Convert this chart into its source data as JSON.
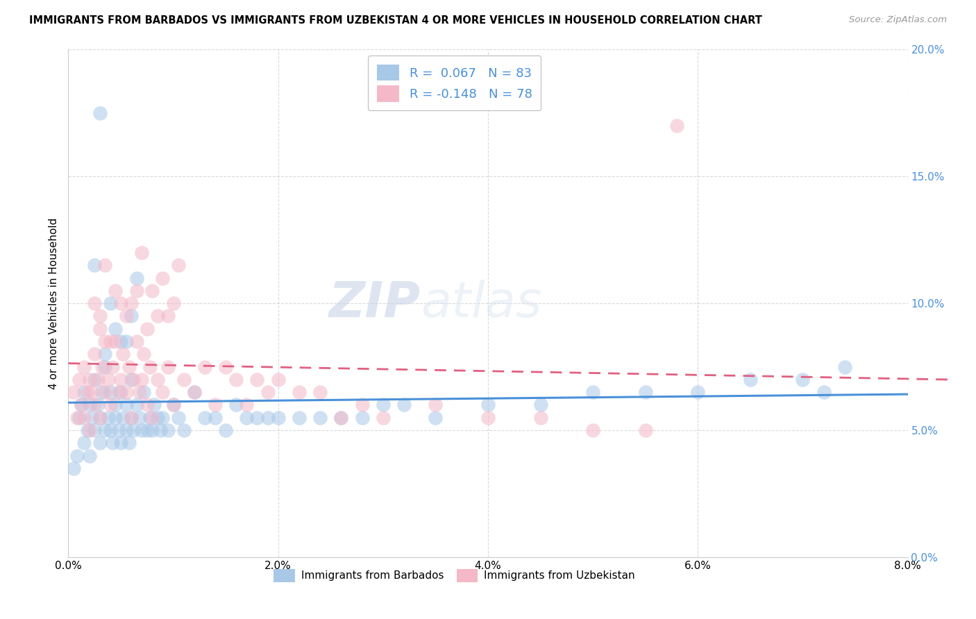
{
  "title": "IMMIGRANTS FROM BARBADOS VS IMMIGRANTS FROM UZBEKISTAN 4 OR MORE VEHICLES IN HOUSEHOLD CORRELATION CHART",
  "source": "Source: ZipAtlas.com",
  "ylabel": "4 or more Vehicles in Household",
  "xlim": [
    0.0,
    8.0
  ],
  "ylim": [
    0.0,
    20.0
  ],
  "yticks": [
    0.0,
    5.0,
    10.0,
    15.0,
    20.0
  ],
  "xticks": [
    0.0,
    2.0,
    4.0,
    6.0,
    8.0
  ],
  "barbados_color": "#a8c8e8",
  "uzbekistan_color": "#f4b8c8",
  "barbados_line_color": "#4a90d9",
  "uzbekistan_line_color": "#e06080",
  "barbados_R": 0.067,
  "barbados_N": 83,
  "uzbekistan_R": -0.148,
  "uzbekistan_N": 78,
  "legend_label_barbados": "Immigrants from Barbados",
  "legend_label_uzbekistan": "Immigrants from Uzbekistan",
  "watermark_zip": "ZIP",
  "watermark_atlas": "atlas",
  "tick_color": "#4a90d9",
  "barbados_scatter_x": [
    0.05,
    0.08,
    0.1,
    0.12,
    0.15,
    0.15,
    0.18,
    0.2,
    0.2,
    0.22,
    0.25,
    0.25,
    0.28,
    0.3,
    0.3,
    0.32,
    0.35,
    0.35,
    0.38,
    0.4,
    0.4,
    0.42,
    0.45,
    0.45,
    0.48,
    0.5,
    0.5,
    0.52,
    0.55,
    0.55,
    0.58,
    0.6,
    0.6,
    0.62,
    0.65,
    0.68,
    0.7,
    0.72,
    0.75,
    0.78,
    0.8,
    0.82,
    0.85,
    0.88,
    0.9,
    0.95,
    1.0,
    1.05,
    1.1,
    1.2,
    1.3,
    1.4,
    1.5,
    1.6,
    1.7,
    1.8,
    1.9,
    2.0,
    2.2,
    2.4,
    2.6,
    2.8,
    3.0,
    3.2,
    3.5,
    4.0,
    4.5,
    5.0,
    5.5,
    6.0,
    6.5,
    7.0,
    7.2,
    7.4,
    0.25,
    0.3,
    0.35,
    0.4,
    0.45,
    0.5,
    0.55,
    0.6,
    0.65
  ],
  "barbados_scatter_y": [
    3.5,
    4.0,
    5.5,
    6.0,
    4.5,
    6.5,
    5.0,
    4.0,
    6.0,
    5.5,
    5.0,
    7.0,
    6.0,
    5.5,
    4.5,
    6.5,
    5.0,
    7.5,
    5.5,
    5.0,
    6.5,
    4.5,
    5.5,
    6.0,
    5.0,
    4.5,
    6.5,
    5.5,
    5.0,
    6.0,
    4.5,
    5.5,
    7.0,
    5.0,
    6.0,
    5.5,
    5.0,
    6.5,
    5.0,
    5.5,
    5.0,
    6.0,
    5.5,
    5.0,
    5.5,
    5.0,
    6.0,
    5.5,
    5.0,
    6.5,
    5.5,
    5.5,
    5.0,
    6.0,
    5.5,
    5.5,
    5.5,
    5.5,
    5.5,
    5.5,
    5.5,
    5.5,
    6.0,
    6.0,
    5.5,
    6.0,
    6.0,
    6.5,
    6.5,
    6.5,
    7.0,
    7.0,
    6.5,
    7.5,
    11.5,
    17.5,
    8.0,
    10.0,
    9.0,
    8.5,
    8.5,
    9.5,
    11.0
  ],
  "uzbekistan_scatter_x": [
    0.05,
    0.08,
    0.1,
    0.12,
    0.15,
    0.15,
    0.18,
    0.2,
    0.2,
    0.22,
    0.25,
    0.25,
    0.28,
    0.3,
    0.3,
    0.32,
    0.35,
    0.35,
    0.38,
    0.4,
    0.42,
    0.45,
    0.48,
    0.5,
    0.52,
    0.55,
    0.58,
    0.6,
    0.62,
    0.65,
    0.68,
    0.7,
    0.72,
    0.75,
    0.78,
    0.8,
    0.85,
    0.9,
    0.95,
    1.0,
    1.1,
    1.2,
    1.3,
    1.4,
    1.5,
    1.6,
    1.7,
    1.8,
    1.9,
    2.0,
    2.2,
    2.4,
    2.6,
    2.8,
    3.0,
    3.5,
    4.0,
    4.5,
    5.0,
    5.5,
    5.8,
    0.25,
    0.3,
    0.35,
    0.4,
    0.45,
    0.5,
    0.55,
    0.6,
    0.65,
    0.7,
    0.75,
    0.8,
    0.85,
    0.9,
    0.95,
    1.0,
    1.05
  ],
  "uzbekistan_scatter_y": [
    6.5,
    5.5,
    7.0,
    6.0,
    5.5,
    7.5,
    6.5,
    7.0,
    5.0,
    6.5,
    6.0,
    8.0,
    7.0,
    5.5,
    9.0,
    7.5,
    6.5,
    8.5,
    7.0,
    6.0,
    7.5,
    8.5,
    6.5,
    7.0,
    8.0,
    6.5,
    7.5,
    5.5,
    7.0,
    8.5,
    6.5,
    7.0,
    8.0,
    6.0,
    7.5,
    5.5,
    7.0,
    6.5,
    7.5,
    6.0,
    7.0,
    6.5,
    7.5,
    6.0,
    7.5,
    7.0,
    6.0,
    7.0,
    6.5,
    7.0,
    6.5,
    6.5,
    5.5,
    6.0,
    5.5,
    6.0,
    5.5,
    5.5,
    5.0,
    5.0,
    17.0,
    10.0,
    9.5,
    11.5,
    8.5,
    10.5,
    10.0,
    9.5,
    10.0,
    10.5,
    12.0,
    9.0,
    10.5,
    9.5,
    11.0,
    9.5,
    10.0,
    11.5
  ]
}
